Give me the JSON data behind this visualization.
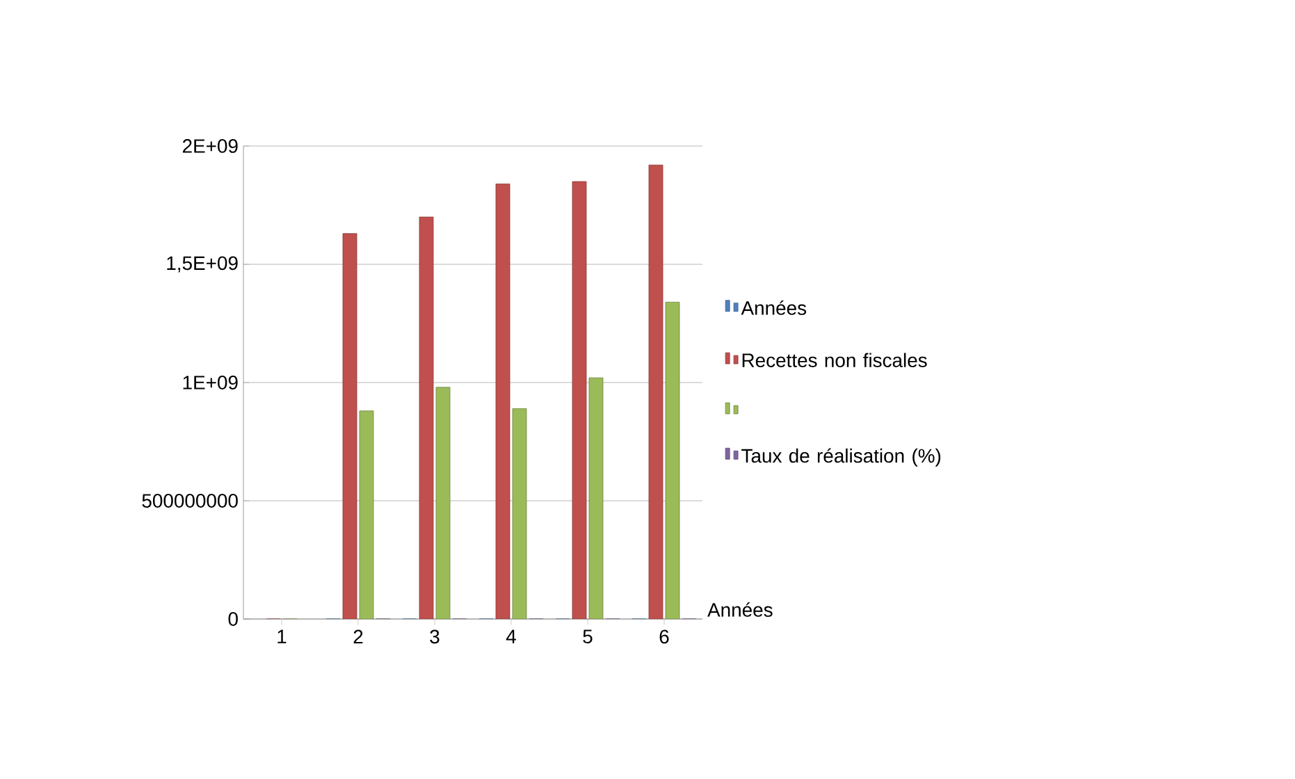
{
  "chart_data": {
    "type": "bar",
    "xlabel": "Années",
    "categories": [
      "1",
      "2",
      "3",
      "4",
      "5",
      "6"
    ],
    "series": [
      {
        "name": "Années",
        "color": "#4f81bd",
        "values": [
          null,
          0,
          0,
          0,
          0,
          0
        ]
      },
      {
        "name": "Recettes non fiscales",
        "color": "#c0504d",
        "values": [
          0,
          1630000000,
          1700000000,
          1840000000,
          1850000000,
          1920000000
        ]
      },
      {
        "color": "#9bbb59",
        "values": [
          0,
          880000000,
          980000000,
          890000000,
          1020000000,
          1340000000
        ]
      },
      {
        "name": "Taux de réalisation (%)",
        "color": "#8064a2",
        "values": [
          null,
          0,
          0,
          0,
          0,
          0
        ]
      }
    ],
    "ylim": [
      0,
      2000000000
    ],
    "yticks": [
      0,
      500000000,
      {
        "value": 1000000000,
        "label": "1E+09"
      },
      {
        "value": 1500000000,
        "label": "1,5E+09"
      },
      {
        "value": 2000000000,
        "label": "2E+09"
      }
    ],
    "grid": "y",
    "legend": "right"
  }
}
